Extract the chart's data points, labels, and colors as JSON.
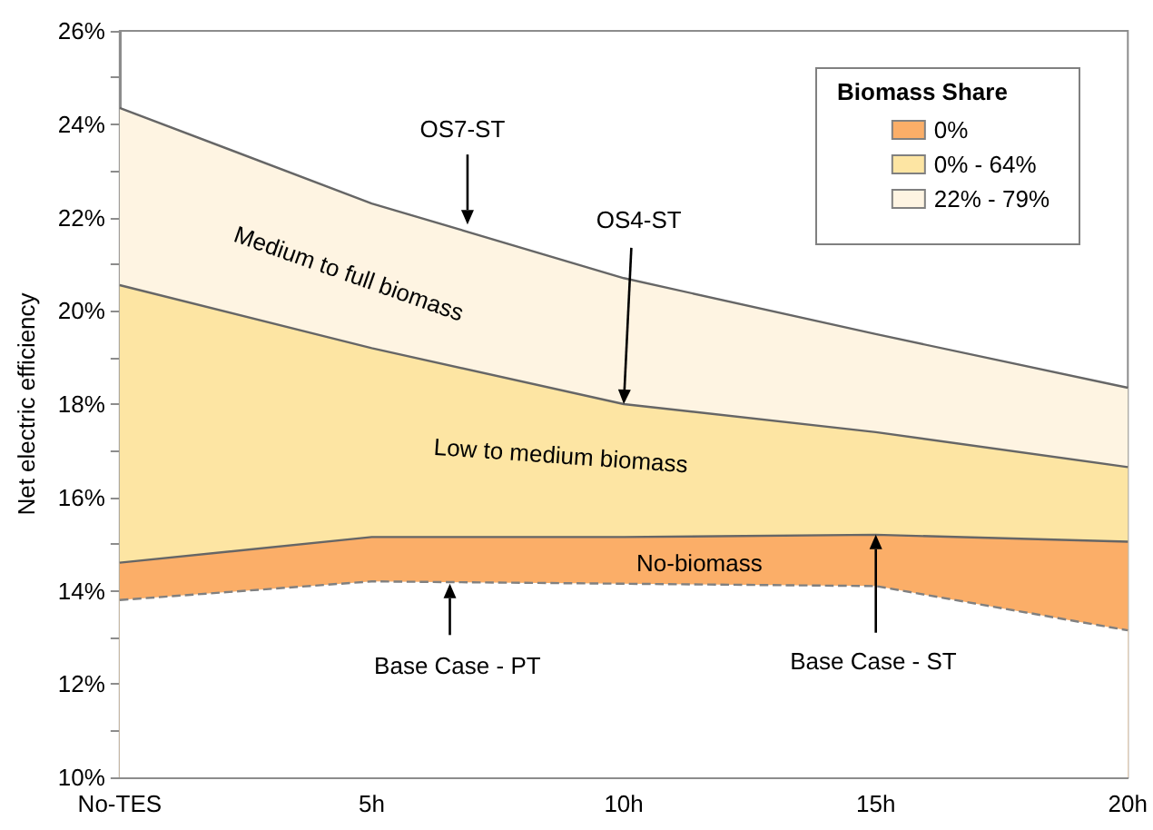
{
  "chart_data": {
    "type": "area",
    "ylabel": "Net electric efficiency",
    "legend_title": "Biomass Share",
    "legend": "top right",
    "grid": false,
    "categories": [
      "No-TES",
      "5h",
      "10h",
      "15h",
      "20h"
    ],
    "ylim": [
      10,
      26
    ],
    "yticks": [
      {
        "value": 10,
        "label": "10%"
      },
      {
        "value": 11,
        "label": null
      },
      {
        "value": 12,
        "label": "12%"
      },
      {
        "value": 13,
        "label": null
      },
      {
        "value": 14,
        "label": "14%"
      },
      {
        "value": 15,
        "label": null
      },
      {
        "value": 16,
        "label": "16%"
      },
      {
        "value": 17,
        "label": null
      },
      {
        "value": 18,
        "label": "18%"
      },
      {
        "value": 19,
        "label": null
      },
      {
        "value": 20,
        "label": "20%"
      },
      {
        "value": 21,
        "label": null
      },
      {
        "value": 22,
        "label": "22%"
      },
      {
        "value": 23,
        "label": null
      },
      {
        "value": 24,
        "label": "24%"
      },
      {
        "value": 25,
        "label": null
      },
      {
        "value": 26,
        "label": "26%"
      }
    ],
    "series": [
      {
        "line_style": "dashed",
        "color": "#ffffff",
        "values": [
          13.8,
          14.2,
          14.15,
          14.1,
          13.15
        ]
      },
      {
        "name": "0%",
        "color": "#fbae68",
        "values": [
          14.6,
          15.15,
          15.15,
          15.2,
          15.05
        ]
      },
      {
        "name": "0% - 64%",
        "color": "#fde5a3",
        "values": [
          20.55,
          19.2,
          18.0,
          17.4,
          16.65
        ]
      },
      {
        "name": "22% - 79%",
        "color": "#fef4e2",
        "values": [
          24.35,
          22.3,
          20.7,
          19.5,
          18.35
        ]
      }
    ],
    "annotations": [
      {
        "text": "OS7-ST",
        "y": 21.85
      },
      {
        "text": "OS4-ST",
        "x": "10h",
        "y": 18.0
      },
      "Medium to full biomass",
      "Low to medium biomass",
      "No-biomass",
      {
        "text": "Base Case - PT",
        "y": 14.15
      },
      {
        "text": "Base Case - ST",
        "x": "15h",
        "y": 15.2
      }
    ]
  }
}
